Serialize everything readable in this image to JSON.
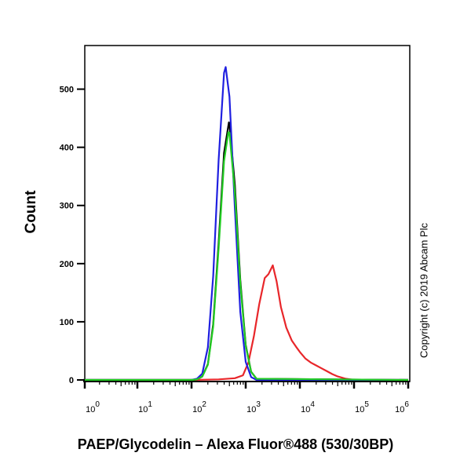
{
  "chart_data": {
    "type": "line",
    "title": "",
    "xlabel": "PAEP/Glycodelin – Alexa Fluor®488 (530/30BP)",
    "ylabel": "Count",
    "xscale": "log",
    "xlim": [
      1,
      1000000
    ],
    "ylim": [
      0,
      575
    ],
    "grid": false,
    "legend": "none",
    "x_ticks": [
      {
        "base": "10",
        "exp": "0",
        "value": 1
      },
      {
        "base": "10",
        "exp": "1",
        "value": 10
      },
      {
        "base": "10",
        "exp": "2",
        "value": 100
      },
      {
        "base": "10",
        "exp": "3",
        "value": 1000
      },
      {
        "base": "10",
        "exp": "4",
        "value": 10000
      },
      {
        "base": "10",
        "exp": "5",
        "value": 100000
      },
      {
        "base": "10",
        "exp": "6",
        "value": 1000000
      }
    ],
    "y_ticks": [
      "0",
      "100",
      "200",
      "300",
      "400",
      "500"
    ],
    "series": [
      {
        "color": "#e8262a",
        "x": [
          1,
          100,
          316,
          631,
          891,
          1122,
          1413,
          1778,
          2239,
          2630,
          3162,
          3715,
          4467,
          5623,
          7079,
          8511,
          10000,
          12589,
          15849,
          19953,
          25119,
          31623,
          39811,
          50119,
          70795,
          100000,
          1000000
        ],
        "y": [
          0,
          0,
          1,
          3,
          8,
          30,
          75,
          130,
          175,
          182,
          197,
          170,
          125,
          90,
          68,
          57,
          48,
          37,
          30,
          25,
          20,
          15,
          10,
          6,
          2,
          0,
          0
        ]
      },
      {
        "color": "#000000",
        "x": [
          1,
          100,
          126,
          158,
          200,
          251,
          316,
          398,
          490,
          501,
          631,
          794,
          1000,
          1259,
          1585,
          1000000
        ],
        "y": [
          0,
          0,
          1,
          6,
          27,
          96,
          235,
          390,
          443,
          440,
          335,
          172,
          60,
          14,
          2,
          0
        ]
      },
      {
        "color": "#1f1fe0",
        "x": [
          1,
          100,
          126,
          158,
          200,
          251,
          316,
          398,
          427,
          501,
          631,
          794,
          1000,
          1259,
          1585,
          1000000
        ],
        "y": [
          0,
          0,
          2,
          11,
          56,
          179,
          378,
          528,
          538,
          487,
          295,
          117,
          31,
          5,
          0,
          0
        ]
      },
      {
        "color": "#22cc22",
        "x": [
          1,
          100,
          126,
          158,
          200,
          251,
          316,
          398,
          479,
          501,
          631,
          794,
          1000,
          1259,
          1585,
          1000000
        ],
        "y": [
          0,
          0,
          1,
          6,
          26,
          92,
          226,
          376,
          426,
          425,
          322,
          166,
          58,
          14,
          2,
          0
        ]
      }
    ]
  },
  "copyright": "Copyright (c) 2019 Abcam Plc"
}
